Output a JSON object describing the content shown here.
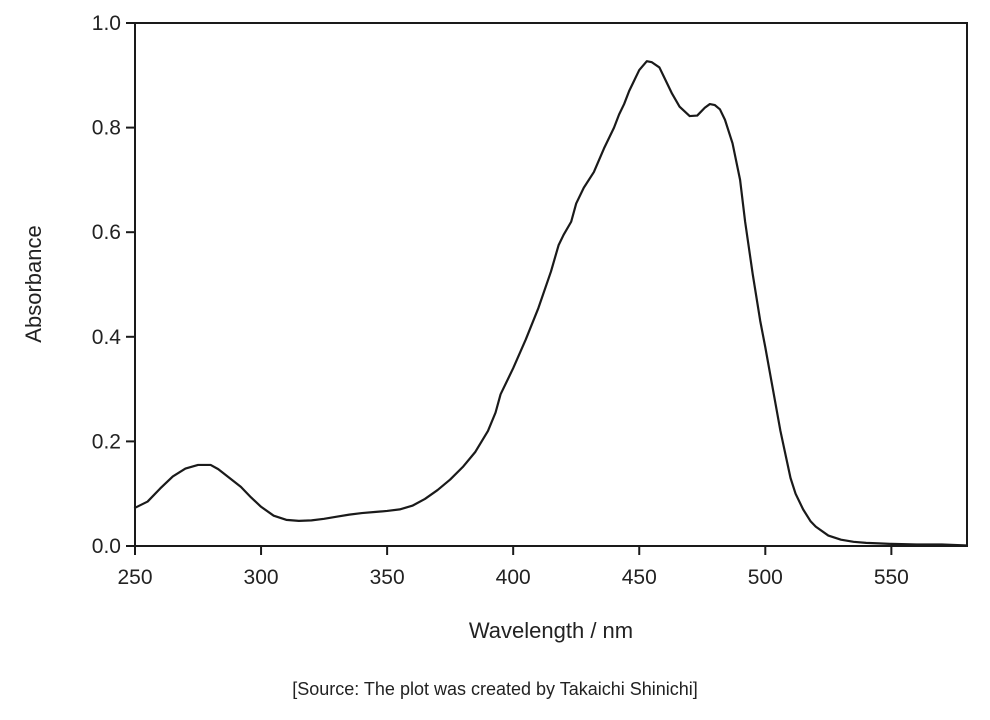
{
  "chart_data": {
    "type": "line",
    "title": "",
    "xlabel": "Wavelength / nm",
    "ylabel": "Absorbance",
    "xlim": [
      250,
      580
    ],
    "ylim": [
      0,
      1.0
    ],
    "xticks": [
      "250",
      "300",
      "350",
      "400",
      "450",
      "500",
      "550"
    ],
    "yticks": [
      "0.0",
      "0.2",
      "0.4",
      "0.6",
      "0.8",
      "1.0"
    ],
    "grid": false,
    "legend": "none",
    "line_color": "#1a1a1a",
    "series": [
      {
        "x": [
          250,
          255,
          260,
          265,
          270,
          275,
          280,
          283,
          287,
          292,
          296,
          300,
          305,
          310,
          315,
          320,
          325,
          330,
          335,
          340,
          345,
          350,
          355,
          360,
          365,
          370,
          375,
          380,
          385,
          390,
          393,
          395,
          400,
          405,
          410,
          415,
          418,
          420,
          423,
          425,
          428,
          432,
          436,
          440,
          442,
          444,
          446,
          450,
          453,
          455,
          458,
          460,
          463,
          466,
          470,
          473,
          476,
          478,
          480,
          482,
          484,
          487,
          490,
          492,
          495,
          498,
          500,
          503,
          506,
          508,
          510,
          512,
          515,
          518,
          520,
          525,
          530,
          535,
          540,
          545,
          550,
          560,
          570,
          580
        ],
        "y": [
          0.073,
          0.085,
          0.11,
          0.133,
          0.148,
          0.155,
          0.155,
          0.147,
          0.132,
          0.113,
          0.093,
          0.075,
          0.058,
          0.05,
          0.048,
          0.049,
          0.052,
          0.056,
          0.06,
          0.063,
          0.065,
          0.067,
          0.07,
          0.077,
          0.09,
          0.107,
          0.127,
          0.151,
          0.18,
          0.22,
          0.255,
          0.29,
          0.34,
          0.395,
          0.455,
          0.525,
          0.575,
          0.595,
          0.62,
          0.655,
          0.685,
          0.715,
          0.76,
          0.8,
          0.825,
          0.845,
          0.87,
          0.91,
          0.927,
          0.925,
          0.915,
          0.895,
          0.865,
          0.84,
          0.822,
          0.823,
          0.838,
          0.845,
          0.843,
          0.835,
          0.815,
          0.77,
          0.7,
          0.62,
          0.52,
          0.43,
          0.38,
          0.3,
          0.22,
          0.175,
          0.13,
          0.1,
          0.07,
          0.047,
          0.037,
          0.02,
          0.012,
          0.008,
          0.006,
          0.005,
          0.004,
          0.003,
          0.003,
          0.001
        ]
      }
    ]
  },
  "caption": "[Source: The plot was created by Takaichi Shinichi]"
}
